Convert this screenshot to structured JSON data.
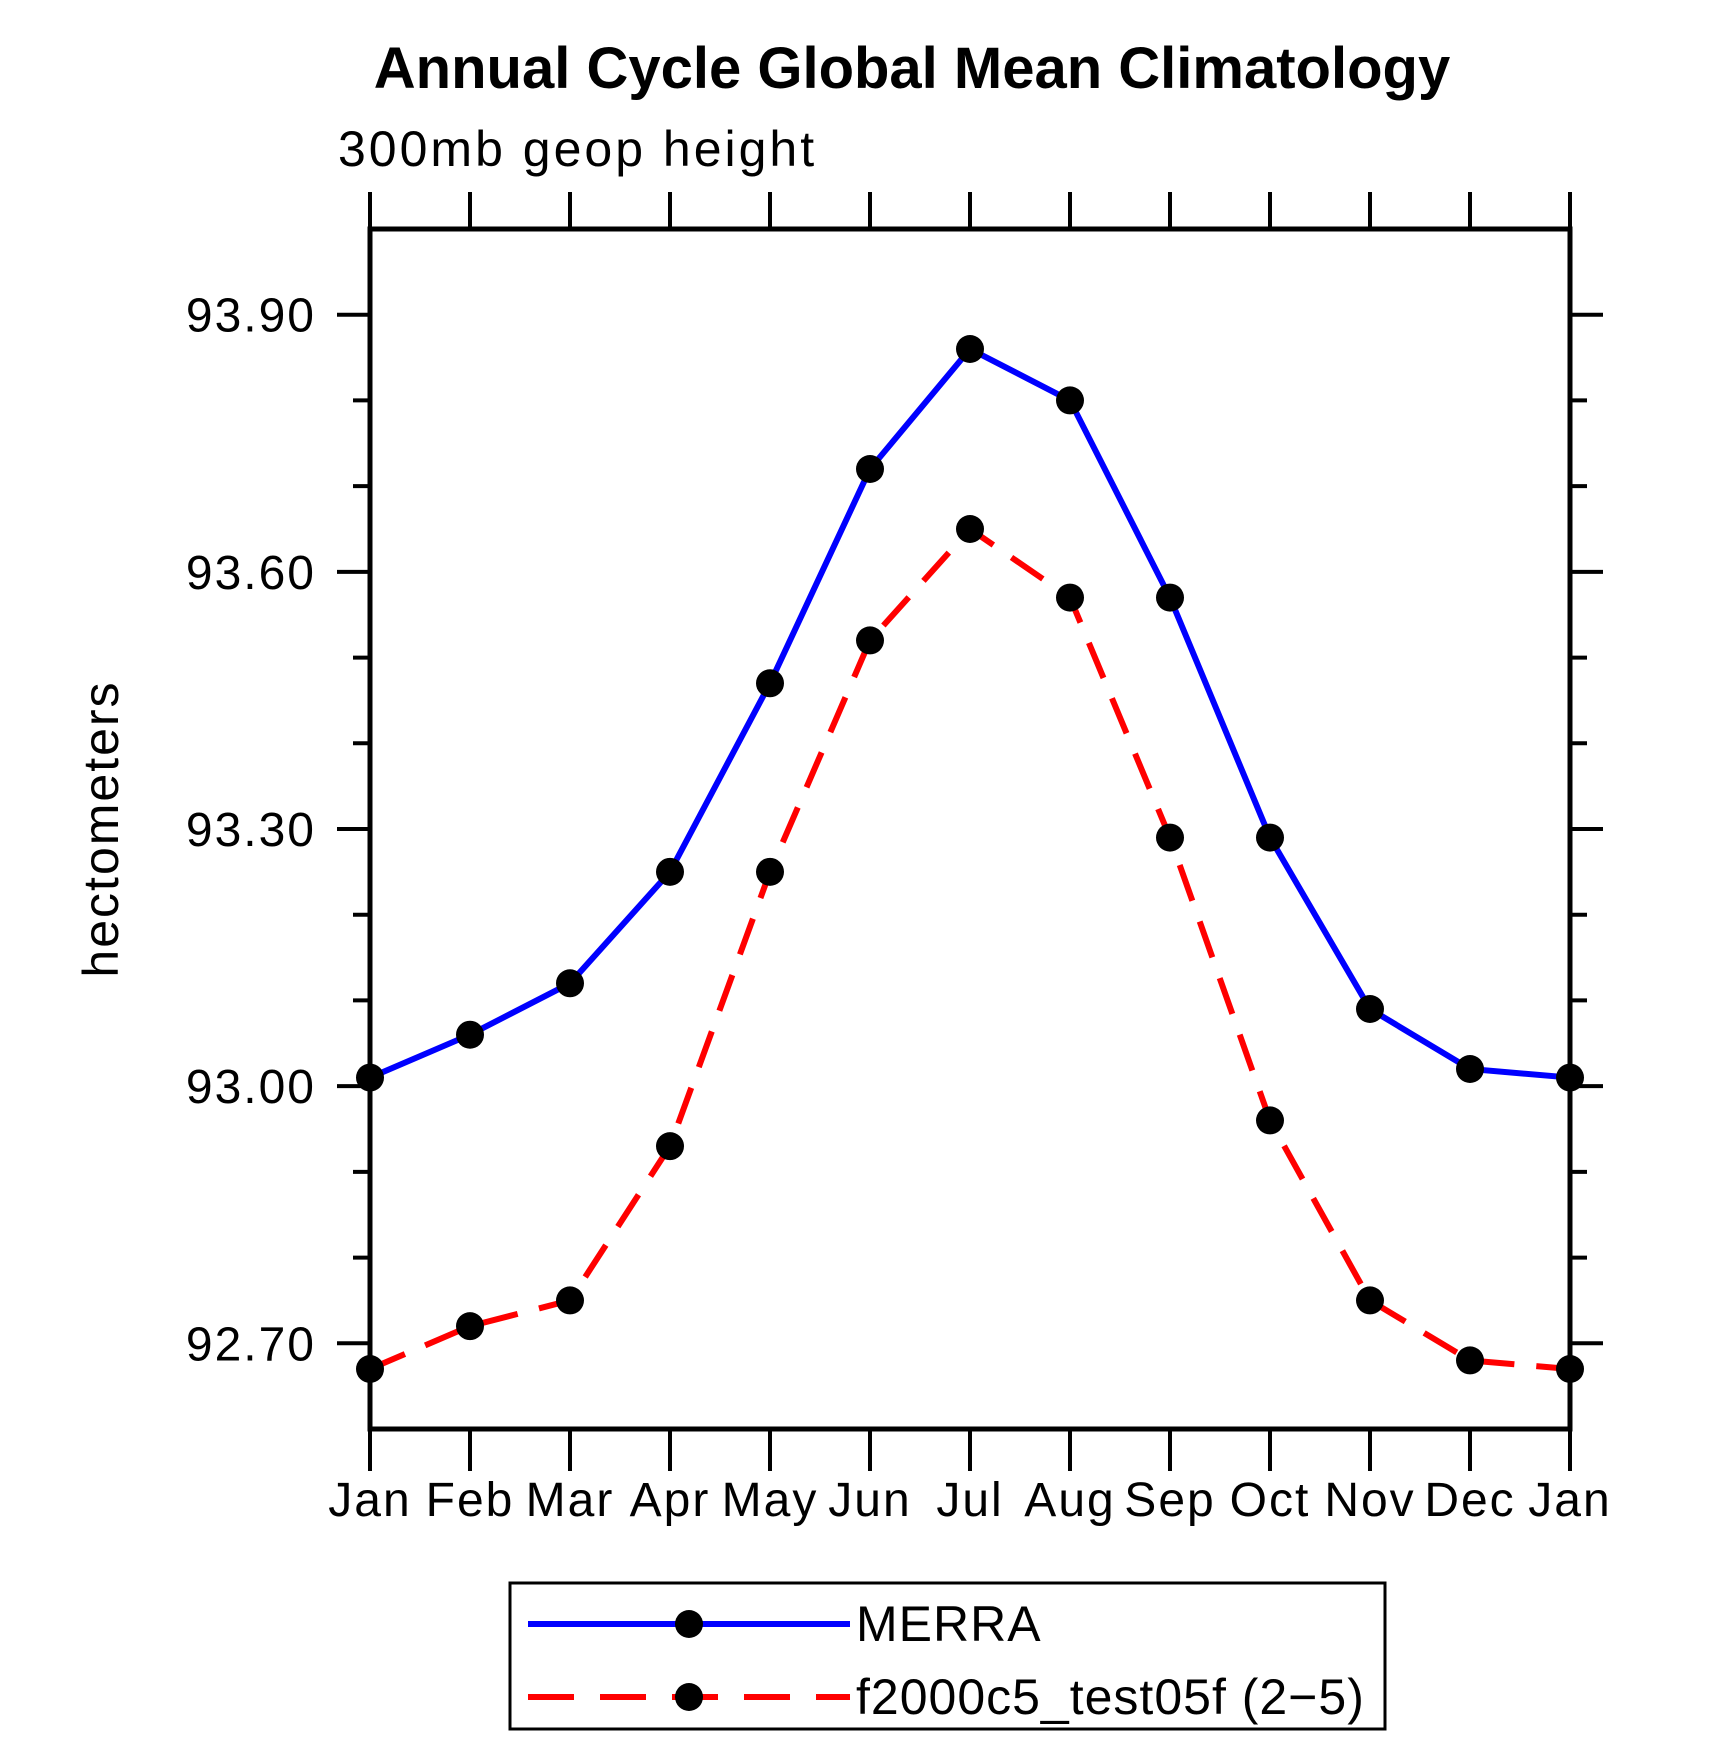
{
  "page": {
    "title": "Annual Cycle Global Mean Climatology"
  },
  "chart_data": {
    "type": "line",
    "title": "Annual Cycle Global Mean Climatology",
    "subtitle": "300mb geop height",
    "ylabel": "hectometers",
    "categories": [
      "Jan",
      "Feb",
      "Mar",
      "Apr",
      "May",
      "Jun",
      "Jul",
      "Aug",
      "Sep",
      "Oct",
      "Nov",
      "Dec",
      "Jan"
    ],
    "ylim": [
      92.6,
      94.0
    ],
    "ytick_major": [
      92.7,
      93.0,
      93.3,
      93.6,
      93.9
    ],
    "ytick_labels": [
      "92.70",
      "93.00",
      "93.30",
      "93.60",
      "93.90"
    ],
    "ytick_minor_step": 0.1,
    "grid": false,
    "legend_position": "bottom-center",
    "series": [
      {
        "name": "MERRA",
        "color": "#0000ff",
        "line_style": "solid",
        "marker": "filled-circle",
        "marker_color": "#000000",
        "values": [
          93.01,
          93.06,
          93.12,
          93.25,
          93.47,
          93.72,
          93.86,
          93.8,
          93.57,
          93.29,
          93.09,
          93.02,
          93.01
        ]
      },
      {
        "name": "f2000c5_test05f (2−5)",
        "color": "#ff0000",
        "line_style": "dashed",
        "marker": "filled-circle",
        "marker_color": "#000000",
        "values": [
          92.67,
          92.72,
          92.75,
          92.93,
          93.25,
          93.52,
          93.65,
          93.57,
          93.29,
          92.96,
          92.75,
          92.68,
          92.67
        ]
      }
    ],
    "colors": {
      "axis": "#000000",
      "text": "#000000",
      "background": "#ffffff"
    }
  }
}
